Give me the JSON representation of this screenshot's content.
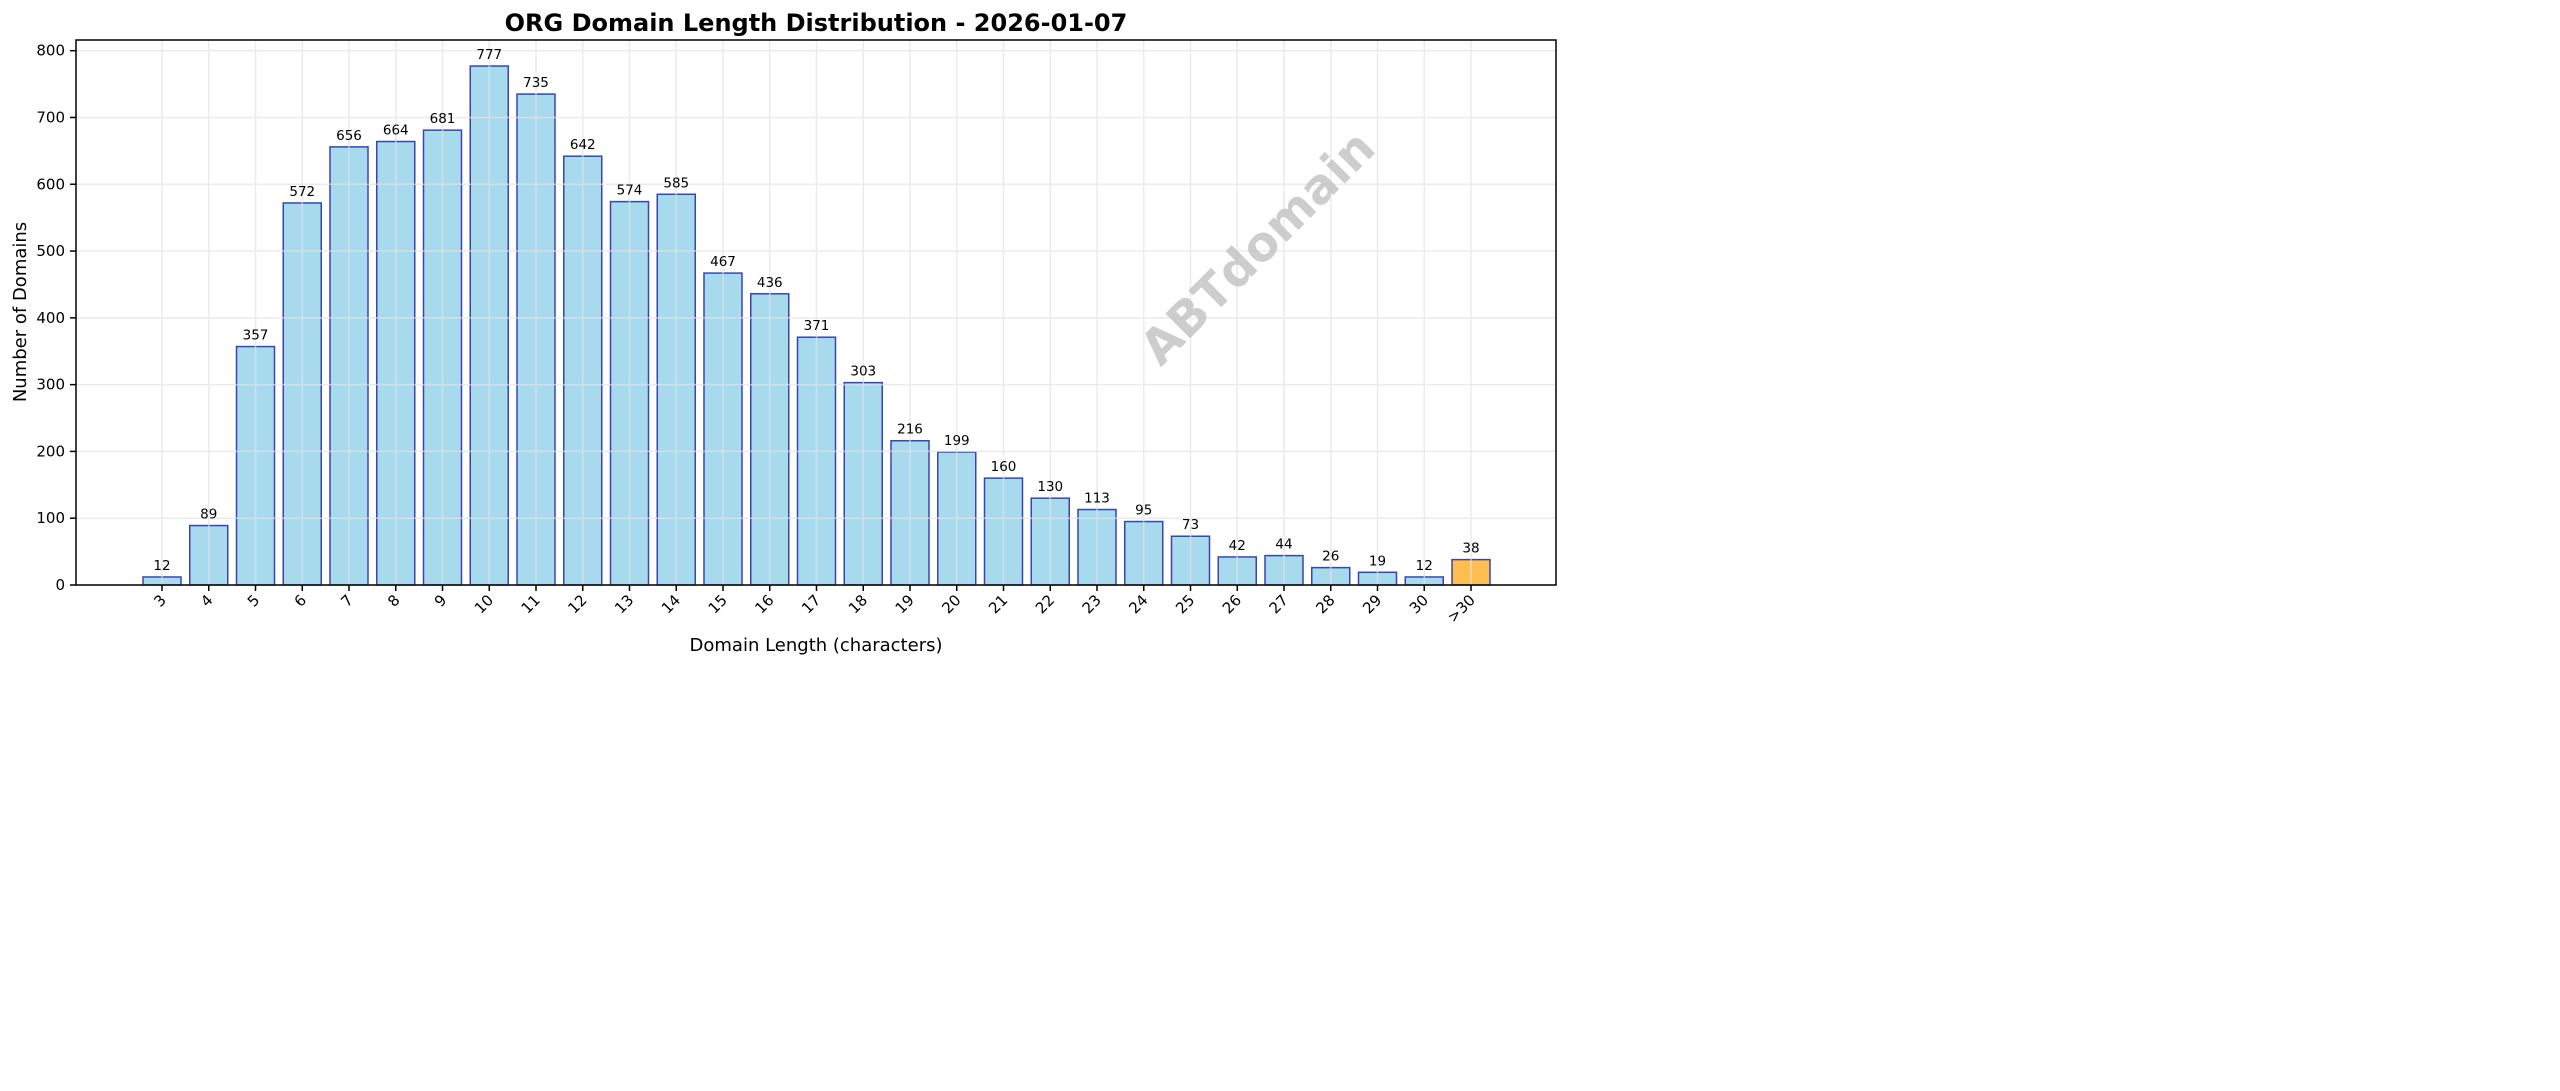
{
  "chart_data": {
    "type": "bar",
    "title": "ORG Domain Length Distribution - 2026-01-07",
    "xlabel": "Domain Length (characters)",
    "ylabel": "Number of Domains",
    "categories": [
      "3",
      "4",
      "5",
      "6",
      "7",
      "8",
      "9",
      "10",
      "11",
      "12",
      "13",
      "14",
      "15",
      "16",
      "17",
      "18",
      "19",
      "20",
      "21",
      "22",
      "23",
      "24",
      "25",
      "26",
      "27",
      "28",
      "29",
      "30",
      ">30"
    ],
    "values": [
      12,
      89,
      357,
      572,
      656,
      664,
      681,
      777,
      735,
      642,
      574,
      585,
      467,
      436,
      371,
      303,
      216,
      199,
      160,
      130,
      113,
      95,
      73,
      42,
      44,
      26,
      19,
      12,
      38
    ],
    "ylim": [
      0,
      816
    ],
    "yticks": [
      0,
      100,
      200,
      300,
      400,
      500,
      600,
      700,
      800
    ],
    "grid": true,
    "watermark": "ABTdomain",
    "colors": {
      "bar_fill": "#A8DAEE",
      "bar_highlight_fill": "#FFBF50",
      "bar_edge": "#3A44B0",
      "grid": "#E3E3E3",
      "watermark": "#BDBDBD"
    },
    "highlight_category": ">30"
  }
}
